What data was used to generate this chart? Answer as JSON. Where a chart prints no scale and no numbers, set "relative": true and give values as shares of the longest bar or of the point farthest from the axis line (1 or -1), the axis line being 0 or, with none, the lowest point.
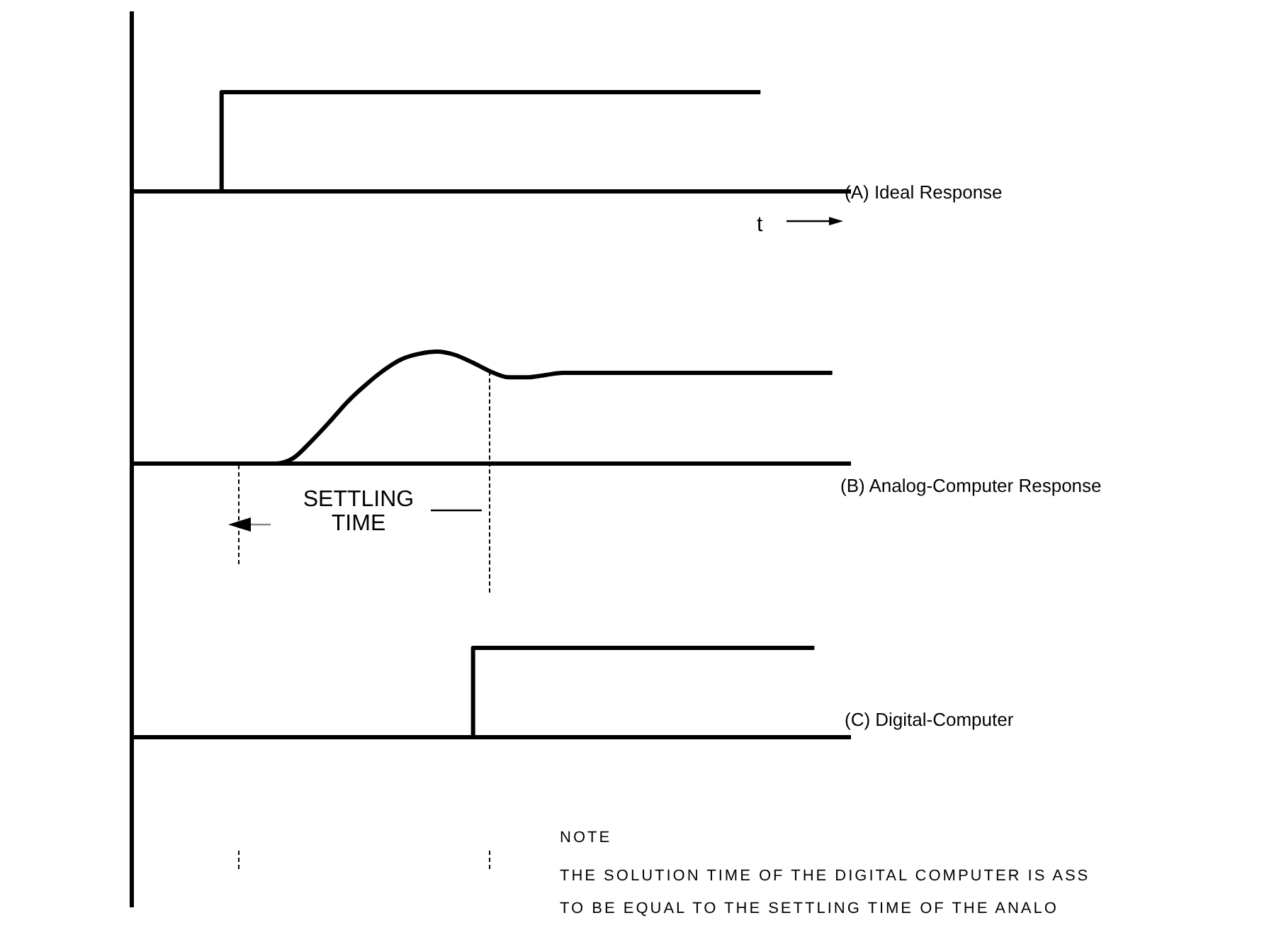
{
  "chart_data": [
    {
      "type": "step",
      "title": "(A) Ideal Response",
      "annotations": [
        "t"
      ],
      "relative": true,
      "categories": [
        null,
        null,
        null,
        null,
        null,
        null,
        null,
        null,
        null,
        null,
        null,
        null,
        null,
        null,
        null,
        null,
        null,
        null,
        null,
        null,
        null,
        null,
        null,
        null,
        null,
        null,
        null,
        null,
        null,
        null,
        null,
        null,
        null,
        null,
        null,
        null,
        null,
        null,
        null,
        null,
        null
      ],
      "series": [
        {
          "color": "#000000",
          "values": [
            0,
            0,
            0,
            0,
            0,
            0,
            1,
            1,
            1,
            1,
            1,
            1,
            1,
            1,
            1,
            1,
            1,
            1,
            1,
            1,
            1,
            1,
            1,
            1,
            1,
            1,
            1,
            1,
            1,
            1,
            1,
            1,
            1,
            1,
            1,
            1,
            null,
            null,
            null,
            null,
            null
          ]
        }
      ],
      "grid": false,
      "legend": false,
      "tick_labels": false,
      "marker": "none",
      "line_style": "solid"
    },
    {
      "type": "line",
      "title": "(B) Analog-Computer Response",
      "annotations": [
        "SETTLING TIME"
      ],
      "relative": true,
      "categories": [
        null,
        null,
        null,
        null,
        null,
        null,
        null,
        null,
        null,
        null,
        null,
        null,
        null,
        null,
        null,
        null,
        null,
        null,
        null,
        null,
        null,
        null,
        null,
        null,
        null,
        null,
        null,
        null,
        null,
        null,
        null,
        null,
        null,
        null,
        null,
        null,
        null,
        null,
        null,
        null,
        null
      ],
      "series": [
        {
          "color": "#000000",
          "values": [
            0,
            0,
            0,
            0,
            0,
            0,
            0,
            0,
            0,
            0.05,
            0.2,
            0.37,
            0.55,
            0.7,
            0.83,
            0.93,
            0.98,
            1,
            0.97,
            0.9,
            0.82,
            0.77,
            0.77,
            0.79,
            0.81,
            0.81,
            0.81,
            0.81,
            0.81,
            0.81,
            0.81,
            0.81,
            0.81,
            0.81,
            0.81,
            0.81,
            0.81,
            0.81,
            0.81,
            0.81,
            null
          ]
        }
      ],
      "grid": false,
      "legend": false,
      "tick_labels": false,
      "marker": "none",
      "line_style": "solid"
    },
    {
      "type": "step",
      "title": "(C) Digital-Computer",
      "annotations": [
        "NOTE",
        "THE SOLUTION TIME OF THE DIGITAL COMPUTER IS ASS",
        "TO BE EQUAL TO THE SETTLING TIME OF THE ANALO"
      ],
      "relative": true,
      "categories": [
        null,
        null,
        null,
        null,
        null,
        null,
        null,
        null,
        null,
        null,
        null,
        null,
        null,
        null,
        null,
        null,
        null,
        null,
        null,
        null,
        null,
        null,
        null,
        null,
        null,
        null,
        null,
        null,
        null,
        null,
        null,
        null,
        null,
        null,
        null,
        null,
        null,
        null,
        null,
        null,
        null
      ],
      "series": [
        {
          "color": "#000000",
          "values": [
            0,
            0,
            0,
            0,
            0,
            0,
            0,
            0,
            0,
            0,
            0,
            0,
            0,
            0,
            0,
            0,
            0,
            0,
            0,
            0,
            1,
            1,
            1,
            1,
            1,
            1,
            1,
            1,
            1,
            1,
            1,
            1,
            1,
            1,
            1,
            1,
            1,
            1,
            1,
            null,
            null
          ]
        }
      ],
      "grid": false,
      "legend": false,
      "tick_labels": false,
      "marker": "none",
      "line_style": "solid"
    }
  ]
}
